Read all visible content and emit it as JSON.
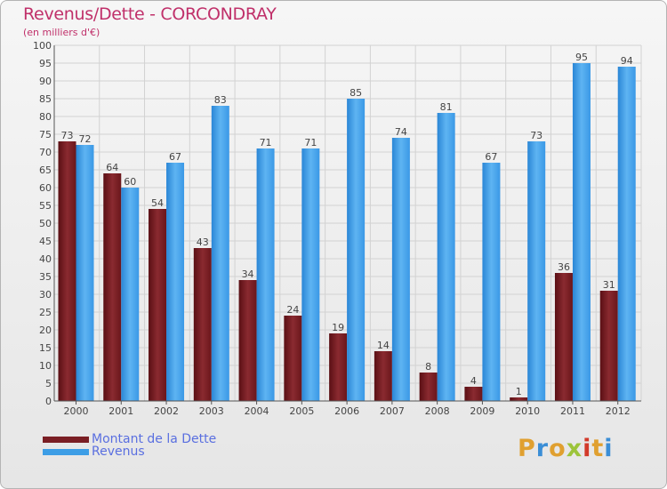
{
  "title": "Revenus/Dette - CORCONDRAY",
  "subtitle": "(en milliers d'€)",
  "colors": {
    "debt": "#7a1e24",
    "revenue": "#3d9ee6",
    "title": "#c0306a",
    "legend_text": "#5a6fe0"
  },
  "legend": {
    "debt_label": "Montant de la Dette",
    "revenue_label": "Revenus"
  },
  "logo": {
    "text": "Proxiti"
  },
  "chart_data": {
    "type": "bar",
    "title": "Revenus/Dette - CORCONDRAY",
    "subtitle": "(en milliers d'€)",
    "categories": [
      "2000",
      "2001",
      "2002",
      "2003",
      "2004",
      "2005",
      "2006",
      "2007",
      "2008",
      "2009",
      "2010",
      "2011",
      "2012"
    ],
    "series": [
      {
        "name": "Montant de la Dette",
        "values": [
          73,
          64,
          54,
          43,
          34,
          24,
          19,
          14,
          8,
          4,
          1,
          36,
          31
        ]
      },
      {
        "name": "Revenus",
        "values": [
          72,
          60,
          67,
          83,
          71,
          71,
          85,
          74,
          81,
          67,
          73,
          95,
          94
        ]
      }
    ],
    "ylim": [
      0,
      100
    ],
    "yticks": [
      0,
      5,
      10,
      15,
      20,
      25,
      30,
      35,
      40,
      45,
      50,
      55,
      60,
      65,
      70,
      75,
      80,
      85,
      90,
      95,
      100
    ],
    "grid": true,
    "legend_position": "bottom-left"
  }
}
